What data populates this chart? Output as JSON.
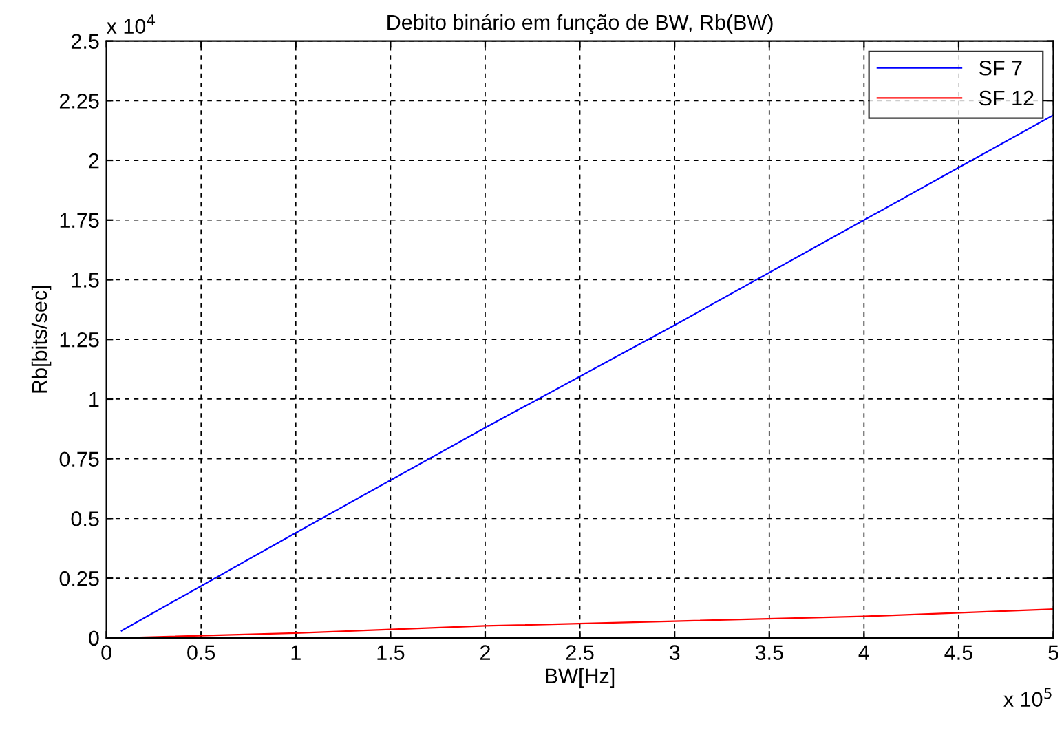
{
  "chart_data": {
    "type": "line",
    "title": "Debito binário em função de BW, Rb(BW)",
    "xlabel": "BW[Hz]",
    "ylabel": "Rb[bits/sec]",
    "x": [
      0.08,
      1,
      2,
      3,
      4,
      5
    ],
    "series": [
      {
        "name": "SF 7",
        "color": "#0000ff",
        "values": [
          0.03,
          0.44,
          0.88,
          1.31,
          1.75,
          2.19
        ]
      },
      {
        "name": "SF 12",
        "color": "#ff0000",
        "values": [
          0,
          0.02,
          0.05,
          0.07,
          0.09,
          0.12
        ]
      }
    ],
    "xlim": [
      0,
      5
    ],
    "ylim": [
      0,
      2.5
    ],
    "xticks": [
      0,
      0.5,
      1,
      1.5,
      2,
      2.5,
      3,
      3.5,
      4,
      4.5,
      5
    ],
    "yticks": [
      0,
      0.25,
      0.5,
      0.75,
      1,
      1.25,
      1.5,
      1.75,
      2,
      2.25,
      2.5
    ],
    "annotations": [
      "x 10$^{4}$",
      "x 10$^{5}$"
    ],
    "grid": true,
    "legend": "top right",
    "line_style": "solid",
    "marker": "none"
  }
}
